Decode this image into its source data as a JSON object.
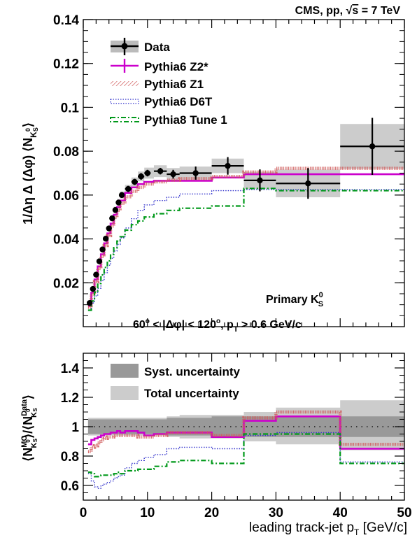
{
  "header": {
    "experiment": "CMS, pp, ",
    "energy": "= 7 TeV",
    "sqrt": "√",
    "s": "s"
  },
  "annotations": {
    "primary": "Primary K",
    "primary_sup": "0",
    "primary_sub": "S",
    "cuts_a": "60",
    "cuts_b": " < |Δφ| < 120",
    "cuts_c": ", p",
    "cuts_d": " > 0.6 GeV/c",
    "deg": "o",
    "T": "T"
  },
  "axes": {
    "xlabel": "leading track-jet p",
    "xlabel_sub": "T",
    "xlabel_unit": " [GeV/c]",
    "top_ylabel": "1/Δη Δ (Δφ) ⟨N",
    "top_ylabel_sub": "K",
    "top_ylabel_subsup": "0",
    "top_ylabel_subsub": "S",
    "top_ylabel_end": "⟩",
    "bot_ylabel_a": "⟨N",
    "bot_ylabel_mc": "MC",
    "bot_ylabel_b": "⟩/⟨N",
    "bot_ylabel_data": "Data",
    "bot_ylabel_c": "⟩",
    "bot_ylabel_k": "K",
    "bot_ylabel_k0": "0",
    "bot_ylabel_ks": "S"
  },
  "legend_top": [
    {
      "label": "Data",
      "color": "#000000",
      "style": "data"
    },
    {
      "label": "Pythia6 Z2*",
      "color": "#cc00cc",
      "style": "solid"
    },
    {
      "label": "Pythia6 Z1",
      "color": "#d05a5a",
      "style": "hatched"
    },
    {
      "label": "Pythia6 D6T",
      "color": "#3333cc",
      "style": "dotted"
    },
    {
      "label": "Pythia8 Tune 1",
      "color": "#00991a",
      "style": "dashdot"
    }
  ],
  "legend_bottom": [
    {
      "label": "Syst. uncertainty",
      "color": "#999999"
    },
    {
      "label": "Total uncertainty",
      "color": "#cccccc"
    }
  ],
  "chart_data": [
    {
      "type": "line",
      "panel": "top",
      "xlim": [
        0,
        50
      ],
      "ylim": [
        0.0,
        0.14
      ],
      "x_ticks": [
        0,
        10,
        20,
        30,
        40,
        50
      ],
      "y_ticks": [
        0.02,
        0.04,
        0.06,
        0.08,
        0.1,
        0.12,
        0.14
      ],
      "x_tick_labels": [
        "0",
        "10",
        "20",
        "30",
        "40",
        "50"
      ],
      "y_tick_labels": [
        "0.02",
        "0.04",
        "0.06",
        "0.08",
        "0.1",
        "0.12",
        "0.14"
      ],
      "bin_edges": [
        0.75,
        1.25,
        1.75,
        2.25,
        2.75,
        3.25,
        3.75,
        4.25,
        4.75,
        5.25,
        5.75,
        6.5,
        7.5,
        8.5,
        9.5,
        11,
        13,
        15,
        20,
        25,
        30,
        40,
        50
      ],
      "series": [
        {
          "name": "Data",
          "x": [
            1,
            1.5,
            2,
            2.5,
            3,
            3.5,
            4,
            4.5,
            5,
            5.5,
            6,
            7,
            8,
            9,
            10,
            12,
            14,
            17.5,
            22.5,
            27.5,
            35,
            45
          ],
          "y": [
            0.0108,
            0.0172,
            0.0237,
            0.0298,
            0.0352,
            0.0401,
            0.0448,
            0.0494,
            0.0532,
            0.0566,
            0.06,
            0.0628,
            0.066,
            0.0685,
            0.07,
            0.0709,
            0.0695,
            0.07,
            0.0733,
            0.0667,
            0.0653,
            0.0822
          ],
          "xerr": [
            0.25,
            0.25,
            0.25,
            0.25,
            0.25,
            0.25,
            0.25,
            0.25,
            0.25,
            0.25,
            0.25,
            0.5,
            0.5,
            0.5,
            0.5,
            1,
            1,
            2.5,
            2.5,
            2.5,
            5,
            5
          ],
          "yerr": [
            0.0008,
            0.0009,
            0.001,
            0.001,
            0.0011,
            0.0011,
            0.0012,
            0.0012,
            0.0012,
            0.0013,
            0.0013,
            0.0014,
            0.0014,
            0.0015,
            0.0015,
            0.0015,
            0.002,
            0.003,
            0.004,
            0.005,
            0.007,
            0.013
          ],
          "band_low": [
            0.0102,
            0.0165,
            0.0228,
            0.0288,
            0.0341,
            0.0389,
            0.0435,
            0.048,
            0.0517,
            0.055,
            0.0584,
            0.061,
            0.064,
            0.0663,
            0.0675,
            0.0682,
            0.0667,
            0.067,
            0.07,
            0.0628,
            0.059,
            0.072
          ],
          "band_high": [
            0.0114,
            0.0179,
            0.0246,
            0.0308,
            0.0363,
            0.0413,
            0.0461,
            0.0508,
            0.0547,
            0.0582,
            0.0616,
            0.0646,
            0.068,
            0.0707,
            0.0725,
            0.0736,
            0.0723,
            0.073,
            0.0766,
            0.0706,
            0.0716,
            0.0924
          ]
        },
        {
          "name": "Pythia6 Z2*",
          "y": [
            0.0094,
            0.0155,
            0.0215,
            0.0275,
            0.033,
            0.038,
            0.0425,
            0.047,
            0.051,
            0.0545,
            0.0575,
            0.061,
            0.0635,
            0.065,
            0.066,
            0.0665,
            0.0665,
            0.0665,
            0.068,
            0.0695,
            0.0695,
            0.0695
          ]
        },
        {
          "name": "Pythia6 Z1",
          "y": [
            0.0088,
            0.0148,
            0.0205,
            0.0265,
            0.032,
            0.037,
            0.0415,
            0.0458,
            0.0498,
            0.053,
            0.0562,
            0.0592,
            0.0617,
            0.0635,
            0.065,
            0.066,
            0.0668,
            0.0675,
            0.0685,
            0.0705,
            0.0722,
            0.0722
          ]
        },
        {
          "name": "Pythia6 D6T",
          "y": [
            0.0074,
            0.0108,
            0.014,
            0.0175,
            0.021,
            0.0246,
            0.028,
            0.0312,
            0.0345,
            0.0375,
            0.0405,
            0.045,
            0.0492,
            0.053,
            0.0555,
            0.0575,
            0.059,
            0.0605,
            0.062,
            0.0625,
            0.0625,
            0.0625
          ]
        },
        {
          "name": "Pythia8 Tune 1",
          "y": [
            0.0075,
            0.0117,
            0.0157,
            0.0197,
            0.0236,
            0.027,
            0.03,
            0.033,
            0.036,
            0.039,
            0.041,
            0.044,
            0.0465,
            0.0482,
            0.05,
            0.0515,
            0.053,
            0.054,
            0.055,
            0.063,
            0.062,
            0.062
          ]
        }
      ]
    },
    {
      "type": "line",
      "panel": "bottom",
      "xlim": [
        0,
        50
      ],
      "ylim": [
        0.5,
        1.5
      ],
      "x_ticks": [
        0,
        10,
        20,
        30,
        40,
        50
      ],
      "y_ticks": [
        0.6,
        0.8,
        1,
        1.2,
        1.4
      ],
      "x_tick_labels": [
        "0",
        "10",
        "20",
        "30",
        "40",
        "50"
      ],
      "y_tick_labels": [
        "0.6",
        "0.8",
        "1",
        "1.2",
        "1.4"
      ],
      "reference_line": 1,
      "bin_edges": [
        0.75,
        1.25,
        1.75,
        2.25,
        2.75,
        3.25,
        3.75,
        4.25,
        4.75,
        5.25,
        5.75,
        6.5,
        7.5,
        8.5,
        9.5,
        11,
        13,
        15,
        20,
        25,
        30,
        40,
        50
      ],
      "syst_band": {
        "low": [
          0.95,
          0.95,
          0.95,
          0.95,
          0.95,
          0.95,
          0.95,
          0.95,
          0.95,
          0.95,
          0.95,
          0.95,
          0.95,
          0.95,
          0.95,
          0.95,
          0.94,
          0.94,
          0.93,
          0.93,
          0.93,
          0.93
        ],
        "high": [
          1.05,
          1.05,
          1.05,
          1.05,
          1.05,
          1.05,
          1.05,
          1.05,
          1.05,
          1.05,
          1.05,
          1.05,
          1.05,
          1.05,
          1.05,
          1.05,
          1.06,
          1.06,
          1.07,
          1.07,
          1.07,
          1.07
        ]
      },
      "total_band": {
        "low": [
          0.94,
          0.94,
          0.94,
          0.94,
          0.94,
          0.94,
          0.94,
          0.94,
          0.94,
          0.94,
          0.94,
          0.94,
          0.94,
          0.94,
          0.94,
          0.94,
          0.93,
          0.92,
          0.92,
          0.9,
          0.88,
          0.84
        ],
        "high": [
          1.06,
          1.06,
          1.06,
          1.06,
          1.06,
          1.06,
          1.06,
          1.06,
          1.06,
          1.06,
          1.06,
          1.06,
          1.06,
          1.06,
          1.06,
          1.06,
          1.07,
          1.08,
          1.08,
          1.1,
          1.13,
          1.18
        ]
      },
      "series": [
        {
          "name": "Pythia6 Z2*",
          "y": [
            0.88,
            0.91,
            0.92,
            0.93,
            0.94,
            0.95,
            0.95,
            0.96,
            0.96,
            0.97,
            0.96,
            0.97,
            0.97,
            0.96,
            0.94,
            0.95,
            0.96,
            0.96,
            0.93,
            1.04,
            1.07,
            0.85
          ]
        },
        {
          "name": "Pythia6 Z1",
          "y": [
            0.83,
            0.86,
            0.87,
            0.89,
            0.91,
            0.92,
            0.93,
            0.93,
            0.94,
            0.94,
            0.94,
            0.94,
            0.94,
            0.93,
            0.93,
            0.94,
            0.96,
            0.96,
            0.94,
            1.06,
            1.1,
            0.88
          ]
        },
        {
          "name": "Pythia6 D6T",
          "y": [
            0.68,
            0.63,
            0.59,
            0.58,
            0.6,
            0.61,
            0.62,
            0.63,
            0.65,
            0.66,
            0.67,
            0.72,
            0.75,
            0.77,
            0.79,
            0.81,
            0.85,
            0.86,
            0.85,
            0.94,
            0.96,
            0.76
          ]
        },
        {
          "name": "Pythia8 Tune 1",
          "y": [
            0.69,
            0.68,
            0.66,
            0.66,
            0.67,
            0.67,
            0.67,
            0.67,
            0.68,
            0.69,
            0.68,
            0.7,
            0.7,
            0.71,
            0.71,
            0.73,
            0.76,
            0.77,
            0.75,
            0.95,
            0.95,
            0.75
          ]
        }
      ]
    }
  ]
}
